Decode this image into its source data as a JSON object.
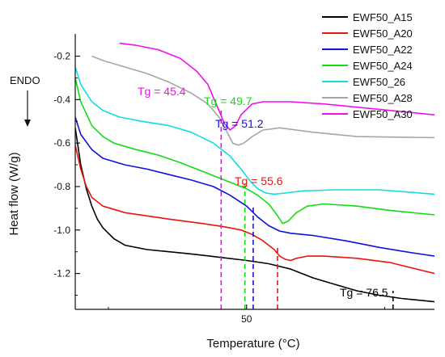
{
  "chart_data": {
    "type": "line",
    "xlabel": "Temperature (°C)",
    "ylabel": "Heat flow (W/g)",
    "endo_label": "ENDO",
    "xlim": [
      19,
      84
    ],
    "ylim": [
      -1.365,
      -0.12
    ],
    "x_ticks": [
      {
        "value": 50,
        "label": "50"
      }
    ],
    "y_ticks": [
      {
        "value": -0.2,
        "label": "-0.2"
      },
      {
        "value": -0.4,
        "label": "-0.4"
      },
      {
        "value": -0.6,
        "label": "-0.6"
      },
      {
        "value": -0.8,
        "label": "-0.8"
      },
      {
        "value": -1.0,
        "label": "-1.0"
      },
      {
        "value": -1.2,
        "label": "-1.2"
      }
    ],
    "legend_position": "top-right",
    "series": [
      {
        "name": "EWF50_A15",
        "color": "#000000",
        "points": [
          [
            19,
            -0.53
          ],
          [
            20,
            -0.7
          ],
          [
            21,
            -0.81
          ],
          [
            22,
            -0.89
          ],
          [
            23,
            -0.95
          ],
          [
            24,
            -0.99
          ],
          [
            26,
            -1.04
          ],
          [
            28,
            -1.07
          ],
          [
            32,
            -1.09
          ],
          [
            36,
            -1.1
          ],
          [
            40,
            -1.11
          ],
          [
            45,
            -1.125
          ],
          [
            50,
            -1.14
          ],
          [
            54,
            -1.155
          ],
          [
            58,
            -1.18
          ],
          [
            62,
            -1.22
          ],
          [
            66,
            -1.25
          ],
          [
            70,
            -1.28
          ],
          [
            74,
            -1.3
          ],
          [
            78,
            -1.315
          ],
          [
            84,
            -1.33
          ]
        ]
      },
      {
        "name": "EWF50_A20",
        "color": "#e8150f",
        "points": [
          [
            19,
            -0.61
          ],
          [
            20,
            -0.72
          ],
          [
            21,
            -0.8
          ],
          [
            22,
            -0.85
          ],
          [
            24,
            -0.89
          ],
          [
            28,
            -0.92
          ],
          [
            36,
            -0.95
          ],
          [
            42,
            -0.97
          ],
          [
            46,
            -0.985
          ],
          [
            49,
            -1.0
          ],
          [
            51,
            -1.02
          ],
          [
            53,
            -1.05
          ],
          [
            55,
            -1.09
          ],
          [
            56,
            -1.12
          ],
          [
            57,
            -1.135
          ],
          [
            58,
            -1.14
          ],
          [
            59,
            -1.13
          ],
          [
            61,
            -1.12
          ],
          [
            64,
            -1.12
          ],
          [
            70,
            -1.13
          ],
          [
            76,
            -1.15
          ],
          [
            84,
            -1.2
          ]
        ]
      },
      {
        "name": "EWF50_A22",
        "color": "#1010e0",
        "points": [
          [
            19,
            -0.48
          ],
          [
            20,
            -0.56
          ],
          [
            22,
            -0.63
          ],
          [
            24,
            -0.67
          ],
          [
            28,
            -0.7
          ],
          [
            32,
            -0.72
          ],
          [
            36,
            -0.745
          ],
          [
            40,
            -0.77
          ],
          [
            44,
            -0.8
          ],
          [
            47,
            -0.84
          ],
          [
            50,
            -0.89
          ],
          [
            52,
            -0.94
          ],
          [
            54,
            -0.98
          ],
          [
            56,
            -1.005
          ],
          [
            58,
            -1.015
          ],
          [
            62,
            -1.025
          ],
          [
            68,
            -1.05
          ],
          [
            74,
            -1.08
          ],
          [
            80,
            -1.105
          ],
          [
            84,
            -1.12
          ]
        ]
      },
      {
        "name": "EWF50_A24",
        "color": "#11dd11",
        "points": [
          [
            19,
            -0.3
          ],
          [
            20,
            -0.41
          ],
          [
            22,
            -0.52
          ],
          [
            24,
            -0.57
          ],
          [
            26,
            -0.6
          ],
          [
            30,
            -0.63
          ],
          [
            34,
            -0.655
          ],
          [
            38,
            -0.69
          ],
          [
            42,
            -0.73
          ],
          [
            46,
            -0.77
          ],
          [
            50,
            -0.81
          ],
          [
            52,
            -0.84
          ],
          [
            54,
            -0.88
          ],
          [
            55.5,
            -0.93
          ],
          [
            56.5,
            -0.97
          ],
          [
            57.5,
            -0.96
          ],
          [
            59,
            -0.92
          ],
          [
            61,
            -0.89
          ],
          [
            64,
            -0.88
          ],
          [
            70,
            -0.89
          ],
          [
            76,
            -0.91
          ],
          [
            84,
            -0.93
          ]
        ]
      },
      {
        "name": "EWF50_26",
        "color": "#11dddd",
        "points": [
          [
            19,
            -0.25
          ],
          [
            20,
            -0.33
          ],
          [
            22,
            -0.41
          ],
          [
            24,
            -0.45
          ],
          [
            27,
            -0.48
          ],
          [
            31,
            -0.5
          ],
          [
            36,
            -0.52
          ],
          [
            40,
            -0.55
          ],
          [
            44,
            -0.6
          ],
          [
            47,
            -0.66
          ],
          [
            49,
            -0.72
          ],
          [
            50.5,
            -0.77
          ],
          [
            52,
            -0.81
          ],
          [
            53.5,
            -0.83
          ],
          [
            55,
            -0.835
          ],
          [
            57,
            -0.83
          ],
          [
            60,
            -0.82
          ],
          [
            66,
            -0.815
          ],
          [
            74,
            -0.815
          ],
          [
            84,
            -0.835
          ]
        ]
      },
      {
        "name": "EWF50_A28",
        "color": "#a6a6a6",
        "points": [
          [
            22,
            -0.2
          ],
          [
            24,
            -0.22
          ],
          [
            28,
            -0.25
          ],
          [
            32,
            -0.28
          ],
          [
            36,
            -0.32
          ],
          [
            40,
            -0.37
          ],
          [
            43,
            -0.42
          ],
          [
            45,
            -0.48
          ],
          [
            46.5,
            -0.55
          ],
          [
            47.5,
            -0.6
          ],
          [
            48.5,
            -0.61
          ],
          [
            49.5,
            -0.6
          ],
          [
            51,
            -0.57
          ],
          [
            53,
            -0.54
          ],
          [
            56,
            -0.53
          ],
          [
            62,
            -0.55
          ],
          [
            70,
            -0.57
          ],
          [
            84,
            -0.575
          ]
        ]
      },
      {
        "name": "EWF50_A30",
        "color": "#ee11ee",
        "points": [
          [
            27,
            -0.14
          ],
          [
            30,
            -0.15
          ],
          [
            34,
            -0.17
          ],
          [
            38,
            -0.21
          ],
          [
            41,
            -0.27
          ],
          [
            43,
            -0.33
          ],
          [
            45,
            -0.45
          ],
          [
            46,
            -0.51
          ],
          [
            47,
            -0.54
          ],
          [
            48,
            -0.52
          ],
          [
            49,
            -0.47
          ],
          [
            51,
            -0.42
          ],
          [
            53,
            -0.41
          ],
          [
            58,
            -0.41
          ],
          [
            64,
            -0.42
          ],
          [
            72,
            -0.44
          ],
          [
            84,
            -0.47
          ]
        ]
      }
    ],
    "annotations": [
      {
        "label": "Tg = 45.4",
        "x": 45.4,
        "color": "#ee11ee"
      },
      {
        "label": "Tg = 49.7",
        "x": 49.7,
        "color": "#11dd11"
      },
      {
        "label": "Tg = 51.2",
        "x": 51.2,
        "color": "#1010e0"
      },
      {
        "label": "Tg = 55.6",
        "x": 55.6,
        "color": "#e8150f"
      },
      {
        "label": "Tg = 76.5",
        "x": 76.5,
        "color": "#000000"
      }
    ]
  }
}
